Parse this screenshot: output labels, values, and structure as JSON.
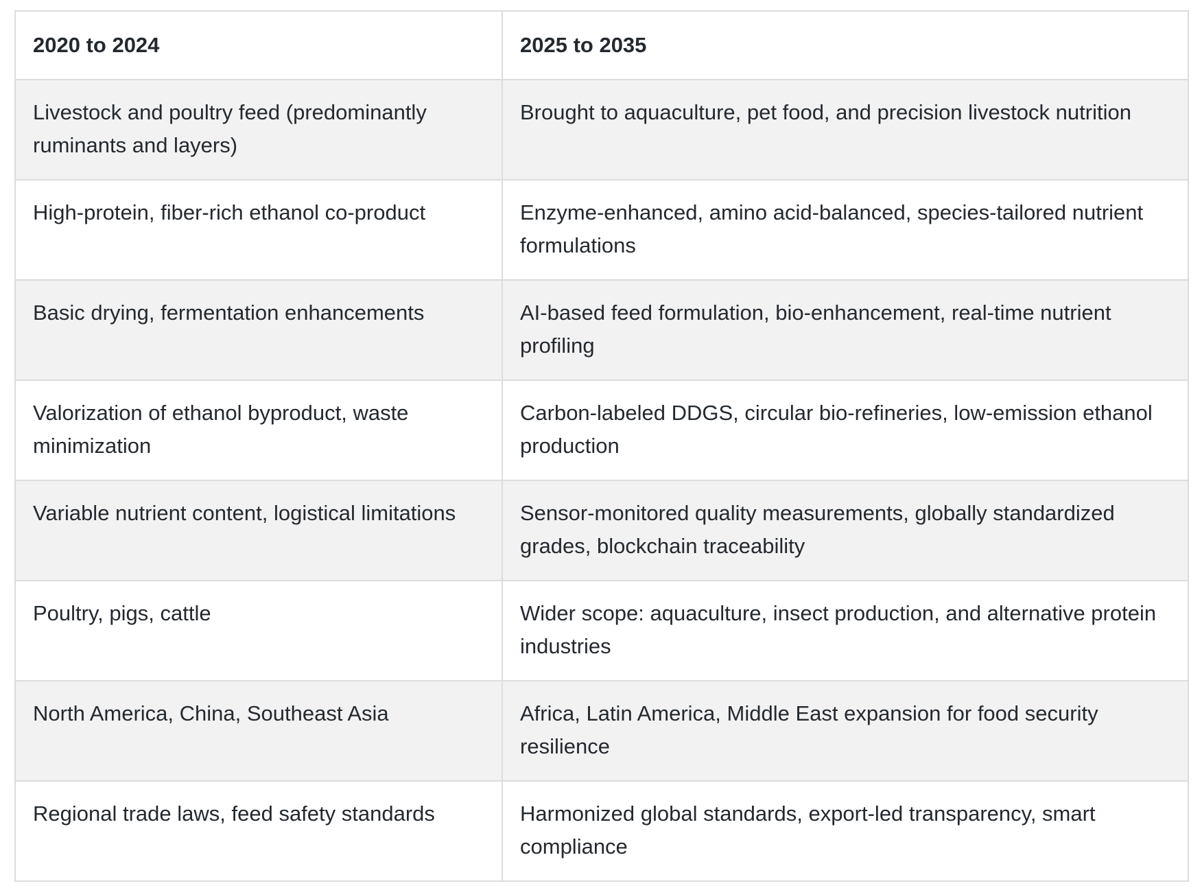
{
  "table": {
    "headers": [
      "2020 to 2024",
      "2025 to 2035"
    ],
    "rows": [
      [
        "Livestock and poultry feed (predominantly ruminants and layers)",
        "Brought to aquaculture, pet food, and precision livestock nutrition"
      ],
      [
        "High-protein, fiber-rich ethanol co-product",
        "Enzyme-enhanced, amino acid-balanced, species-tailored nutrient formulations"
      ],
      [
        "Basic drying, fermentation enhancements",
        "AI-based feed formulation, bio-enhancement, real-time nutrient profiling"
      ],
      [
        "Valorization of ethanol byproduct, waste minimization",
        "Carbon-labeled DDGS, circular bio-refineries, low-emission ethanol production"
      ],
      [
        "Variable nutrient content, logistical limitations",
        "Sensor-monitored quality measurements, globally standardized grades, blockchain traceability"
      ],
      [
        "Poultry, pigs, cattle",
        "Wider scope: aquaculture, insect production, and alternative protein industries"
      ],
      [
        "North America, China, Southeast Asia",
        "Africa, Latin America, Middle East expansion for food security resilience"
      ],
      [
        "Regional trade laws, feed safety standards",
        "Harmonized global standards, export-led transparency, smart compliance"
      ]
    ]
  }
}
